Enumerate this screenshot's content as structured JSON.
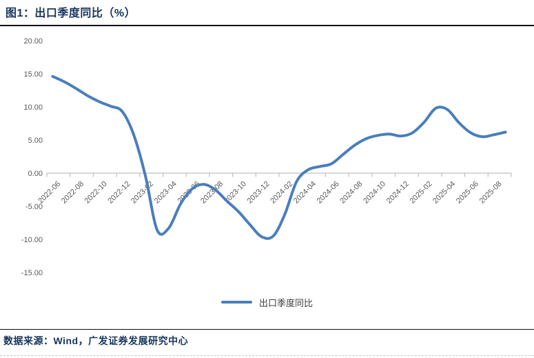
{
  "header": {
    "title": "图1：出口季度同比（%）"
  },
  "legend": {
    "label": "出口季度同比"
  },
  "footer": {
    "source": "数据来源：Wind，广发证券发展研究中心"
  },
  "colors": {
    "line": "#4A7EBB",
    "title_text": "#17365D",
    "axis_text": "#595959",
    "axis_line": "#BFBFBF",
    "legend_text": "#404040"
  },
  "chart_data": {
    "type": "line",
    "title": "出口季度同比（%）",
    "xlabel": "",
    "ylabel": "",
    "ylim": [
      -15,
      20
    ],
    "grid": false,
    "legend_position": "bottom",
    "y_tick_labels": [
      "20.00",
      "15.00",
      "10.00",
      "5.00",
      "0.00",
      "-5.00",
      "-10.00",
      "-15.00"
    ],
    "x_tick_labels": [
      "2022-06",
      "2022-08",
      "2022-10",
      "2022-12",
      "2023-02",
      "2023-04",
      "2023-06",
      "2023-08",
      "2023-10",
      "2023-12",
      "2024-02",
      "2024-04",
      "2024-06",
      "2024-08",
      "2024-10",
      "2024-12",
      "2025-02",
      "2025-04",
      "2025-06",
      "2025-08"
    ],
    "x": [
      "2022-06",
      "2022-07",
      "2022-08",
      "2022-09",
      "2022-10",
      "2022-11",
      "2022-12",
      "2023-01",
      "2023-02",
      "2023-03",
      "2023-04",
      "2023-05",
      "2023-06",
      "2023-07",
      "2023-08",
      "2023-09",
      "2023-10",
      "2023-11",
      "2023-12",
      "2024-01",
      "2024-02",
      "2024-03",
      "2024-04",
      "2024-05",
      "2024-06",
      "2024-07",
      "2024-08",
      "2024-09",
      "2024-10",
      "2024-11",
      "2024-12",
      "2025-01",
      "2025-02",
      "2025-03",
      "2025-04",
      "2025-05",
      "2025-06",
      "2025-07",
      "2025-08",
      "2025-09"
    ],
    "series": [
      {
        "name": "出口季度同比",
        "values": [
          14.6,
          13.8,
          12.8,
          11.7,
          10.8,
          10.1,
          9.3,
          5.7,
          -0.5,
          -8.6,
          -8.3,
          -4.7,
          -2.4,
          -1.7,
          -2.5,
          -4.2,
          -5.8,
          -7.8,
          -9.6,
          -9.5,
          -6.2,
          -1.3,
          0.5,
          1.0,
          1.4,
          2.8,
          4.2,
          5.2,
          5.7,
          5.9,
          5.6,
          6.1,
          7.7,
          9.8,
          9.6,
          7.6,
          6.1,
          5.5,
          5.8,
          6.2
        ]
      }
    ]
  }
}
